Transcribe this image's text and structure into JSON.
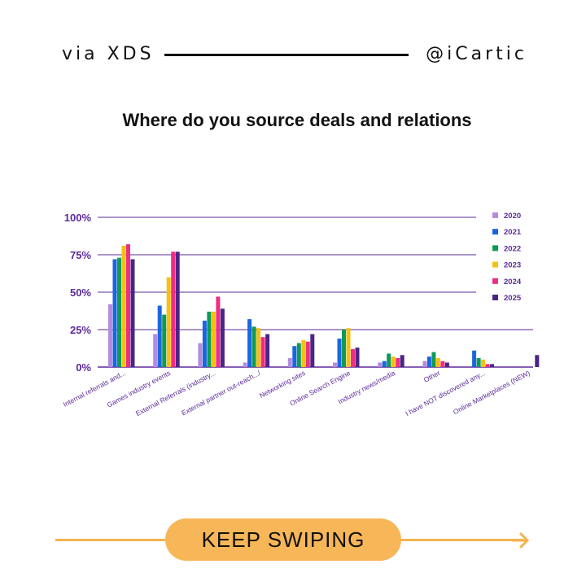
{
  "header": {
    "left": "via XDS",
    "right": "@iCartic"
  },
  "title": "Where do you source deals and relations",
  "cta": {
    "label": "KEEP SWIPING"
  },
  "colors": {
    "2020": "#b48be0",
    "2021": "#1a66e0",
    "2022": "#0f9a5a",
    "2023": "#f5c111",
    "2024": "#ee2d83",
    "2025": "#4a2588",
    "axis": "#5b2a9a",
    "cta": "#f7b657"
  },
  "chart_data": {
    "type": "bar",
    "categories": [
      "Internal referrals and...",
      "Games industry events",
      "External Referrals (industry...",
      "External partner out-reach.../",
      "Networking sites",
      "Online Search Engine",
      "Industry news/media",
      "Other",
      "I have NOT discovered any...",
      "Online Marketplaces (NEW)"
    ],
    "series": [
      {
        "name": "2020",
        "values": [
          42,
          22,
          16,
          3,
          6,
          3,
          3,
          4,
          0,
          0
        ]
      },
      {
        "name": "2021",
        "values": [
          72,
          41,
          31,
          32,
          14,
          19,
          4,
          7,
          11,
          0
        ]
      },
      {
        "name": "2022",
        "values": [
          73,
          35,
          37,
          27,
          16,
          25,
          9,
          10,
          6,
          0
        ]
      },
      {
        "name": "2023",
        "values": [
          81,
          60,
          37,
          26,
          18,
          26,
          7,
          6,
          5,
          0
        ]
      },
      {
        "name": "2024",
        "values": [
          82,
          77,
          47,
          20,
          17,
          12,
          6,
          4,
          2,
          0
        ]
      },
      {
        "name": "2025",
        "values": [
          72,
          77,
          39,
          22,
          22,
          13,
          8,
          3,
          2,
          8
        ]
      }
    ],
    "yticks": [
      "100%",
      "75%",
      "50%",
      "25%",
      "0%"
    ],
    "ylim": [
      0,
      100
    ],
    "grid": true,
    "legend": "right"
  }
}
